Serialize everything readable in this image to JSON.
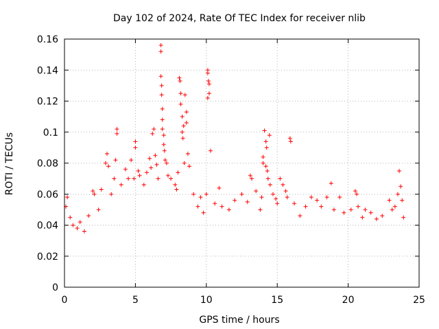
{
  "chart_data": {
    "type": "scatter",
    "title": "Day 102 of 2024, Rate Of TEC Index for receiver nlib",
    "xlabel": "GPS time / hours",
    "ylabel": "ROTI / TECUs",
    "xlim": [
      0,
      25
    ],
    "ylim": [
      0,
      0.16
    ],
    "x_ticks": [
      0,
      5,
      10,
      15,
      20,
      25
    ],
    "y_ticks": [
      0,
      0.02,
      0.04,
      0.06,
      0.08,
      0.1,
      0.12,
      0.14,
      0.16
    ],
    "x_tick_labels": [
      "0",
      "5",
      "10",
      "15",
      "20",
      "25"
    ],
    "y_tick_labels": [
      "0",
      "0.02",
      "0.04",
      "0.06",
      "0.08",
      "0.1",
      "0.12",
      "0.14",
      "0.16"
    ],
    "grid": true,
    "marker": "+",
    "color": "#ff0000",
    "series": [
      {
        "points": [
          [
            0.1,
            0.052
          ],
          [
            0.2,
            0.058
          ],
          [
            0.4,
            0.045
          ],
          [
            0.6,
            0.04
          ],
          [
            0.9,
            0.038
          ],
          [
            1.1,
            0.042
          ],
          [
            1.4,
            0.036
          ],
          [
            1.7,
            0.046
          ],
          [
            2.0,
            0.062
          ],
          [
            2.1,
            0.06
          ],
          [
            2.4,
            0.05
          ],
          [
            2.6,
            0.063
          ],
          [
            2.9,
            0.08
          ],
          [
            3.0,
            0.086
          ],
          [
            3.1,
            0.078
          ],
          [
            3.3,
            0.06
          ],
          [
            3.5,
            0.07
          ],
          [
            3.6,
            0.082
          ],
          [
            3.7,
            0.102
          ],
          [
            3.7,
            0.099
          ],
          [
            4.0,
            0.066
          ],
          [
            4.3,
            0.076
          ],
          [
            4.5,
            0.07
          ],
          [
            4.7,
            0.082
          ],
          [
            4.9,
            0.07
          ],
          [
            5.0,
            0.094
          ],
          [
            5.0,
            0.09
          ],
          [
            5.2,
            0.075
          ],
          [
            5.3,
            0.072
          ],
          [
            5.6,
            0.066
          ],
          [
            5.8,
            0.074
          ],
          [
            6.0,
            0.083
          ],
          [
            6.1,
            0.077
          ],
          [
            6.2,
            0.099
          ],
          [
            6.3,
            0.102
          ],
          [
            6.4,
            0.085
          ],
          [
            6.5,
            0.079
          ],
          [
            6.6,
            0.07
          ],
          [
            6.8,
            0.156
          ],
          [
            6.8,
            0.152
          ],
          [
            6.8,
            0.136
          ],
          [
            6.85,
            0.13
          ],
          [
            6.85,
            0.124
          ],
          [
            6.9,
            0.115
          ],
          [
            6.9,
            0.108
          ],
          [
            6.9,
            0.102
          ],
          [
            7.0,
            0.098
          ],
          [
            7.0,
            0.092
          ],
          [
            7.05,
            0.088
          ],
          [
            7.1,
            0.082
          ],
          [
            7.2,
            0.08
          ],
          [
            7.3,
            0.072
          ],
          [
            7.5,
            0.07
          ],
          [
            7.8,
            0.066
          ],
          [
            7.9,
            0.063
          ],
          [
            8.0,
            0.074
          ],
          [
            8.1,
            0.135
          ],
          [
            8.15,
            0.133
          ],
          [
            8.2,
            0.125
          ],
          [
            8.2,
            0.118
          ],
          [
            8.3,
            0.11
          ],
          [
            8.3,
            0.1
          ],
          [
            8.35,
            0.096
          ],
          [
            8.4,
            0.104
          ],
          [
            8.45,
            0.08
          ],
          [
            8.5,
            0.124
          ],
          [
            8.6,
            0.113
          ],
          [
            8.6,
            0.106
          ],
          [
            8.7,
            0.086
          ],
          [
            8.8,
            0.078
          ],
          [
            9.1,
            0.06
          ],
          [
            9.4,
            0.052
          ],
          [
            9.6,
            0.058
          ],
          [
            9.8,
            0.048
          ],
          [
            10.0,
            0.06
          ],
          [
            10.1,
            0.14
          ],
          [
            10.1,
            0.138
          ],
          [
            10.15,
            0.133
          ],
          [
            10.2,
            0.131
          ],
          [
            10.2,
            0.125
          ],
          [
            10.1,
            0.122
          ],
          [
            10.3,
            0.088
          ],
          [
            10.6,
            0.054
          ],
          [
            10.9,
            0.064
          ],
          [
            11.1,
            0.052
          ],
          [
            11.6,
            0.05
          ],
          [
            12.0,
            0.056
          ],
          [
            12.5,
            0.06
          ],
          [
            12.9,
            0.055
          ],
          [
            13.1,
            0.072
          ],
          [
            13.2,
            0.07
          ],
          [
            13.5,
            0.062
          ],
          [
            13.8,
            0.05
          ],
          [
            13.9,
            0.058
          ],
          [
            14.0,
            0.08
          ],
          [
            14.0,
            0.084
          ],
          [
            14.1,
            0.101
          ],
          [
            14.2,
            0.094
          ],
          [
            14.25,
            0.09
          ],
          [
            14.2,
            0.078
          ],
          [
            14.3,
            0.075
          ],
          [
            14.35,
            0.07
          ],
          [
            14.45,
            0.098
          ],
          [
            14.5,
            0.066
          ],
          [
            14.7,
            0.06
          ],
          [
            14.9,
            0.057
          ],
          [
            15.0,
            0.054
          ],
          [
            15.2,
            0.07
          ],
          [
            15.4,
            0.066
          ],
          [
            15.6,
            0.062
          ],
          [
            15.7,
            0.058
          ],
          [
            15.9,
            0.096
          ],
          [
            15.95,
            0.094
          ],
          [
            16.2,
            0.054
          ],
          [
            16.6,
            0.046
          ],
          [
            17.0,
            0.052
          ],
          [
            17.4,
            0.058
          ],
          [
            17.8,
            0.056
          ],
          [
            18.1,
            0.052
          ],
          [
            18.5,
            0.058
          ],
          [
            18.8,
            0.067
          ],
          [
            19.0,
            0.05
          ],
          [
            19.4,
            0.058
          ],
          [
            19.7,
            0.048
          ],
          [
            20.2,
            0.05
          ],
          [
            20.5,
            0.062
          ],
          [
            20.6,
            0.06
          ],
          [
            20.7,
            0.052
          ],
          [
            21.0,
            0.045
          ],
          [
            21.2,
            0.05
          ],
          [
            21.6,
            0.048
          ],
          [
            22.0,
            0.044
          ],
          [
            22.4,
            0.046
          ],
          [
            22.9,
            0.056
          ],
          [
            23.1,
            0.05
          ],
          [
            23.3,
            0.052
          ],
          [
            23.5,
            0.06
          ],
          [
            23.6,
            0.075
          ],
          [
            23.7,
            0.065
          ],
          [
            23.8,
            0.056
          ],
          [
            23.9,
            0.045
          ]
        ]
      }
    ]
  }
}
